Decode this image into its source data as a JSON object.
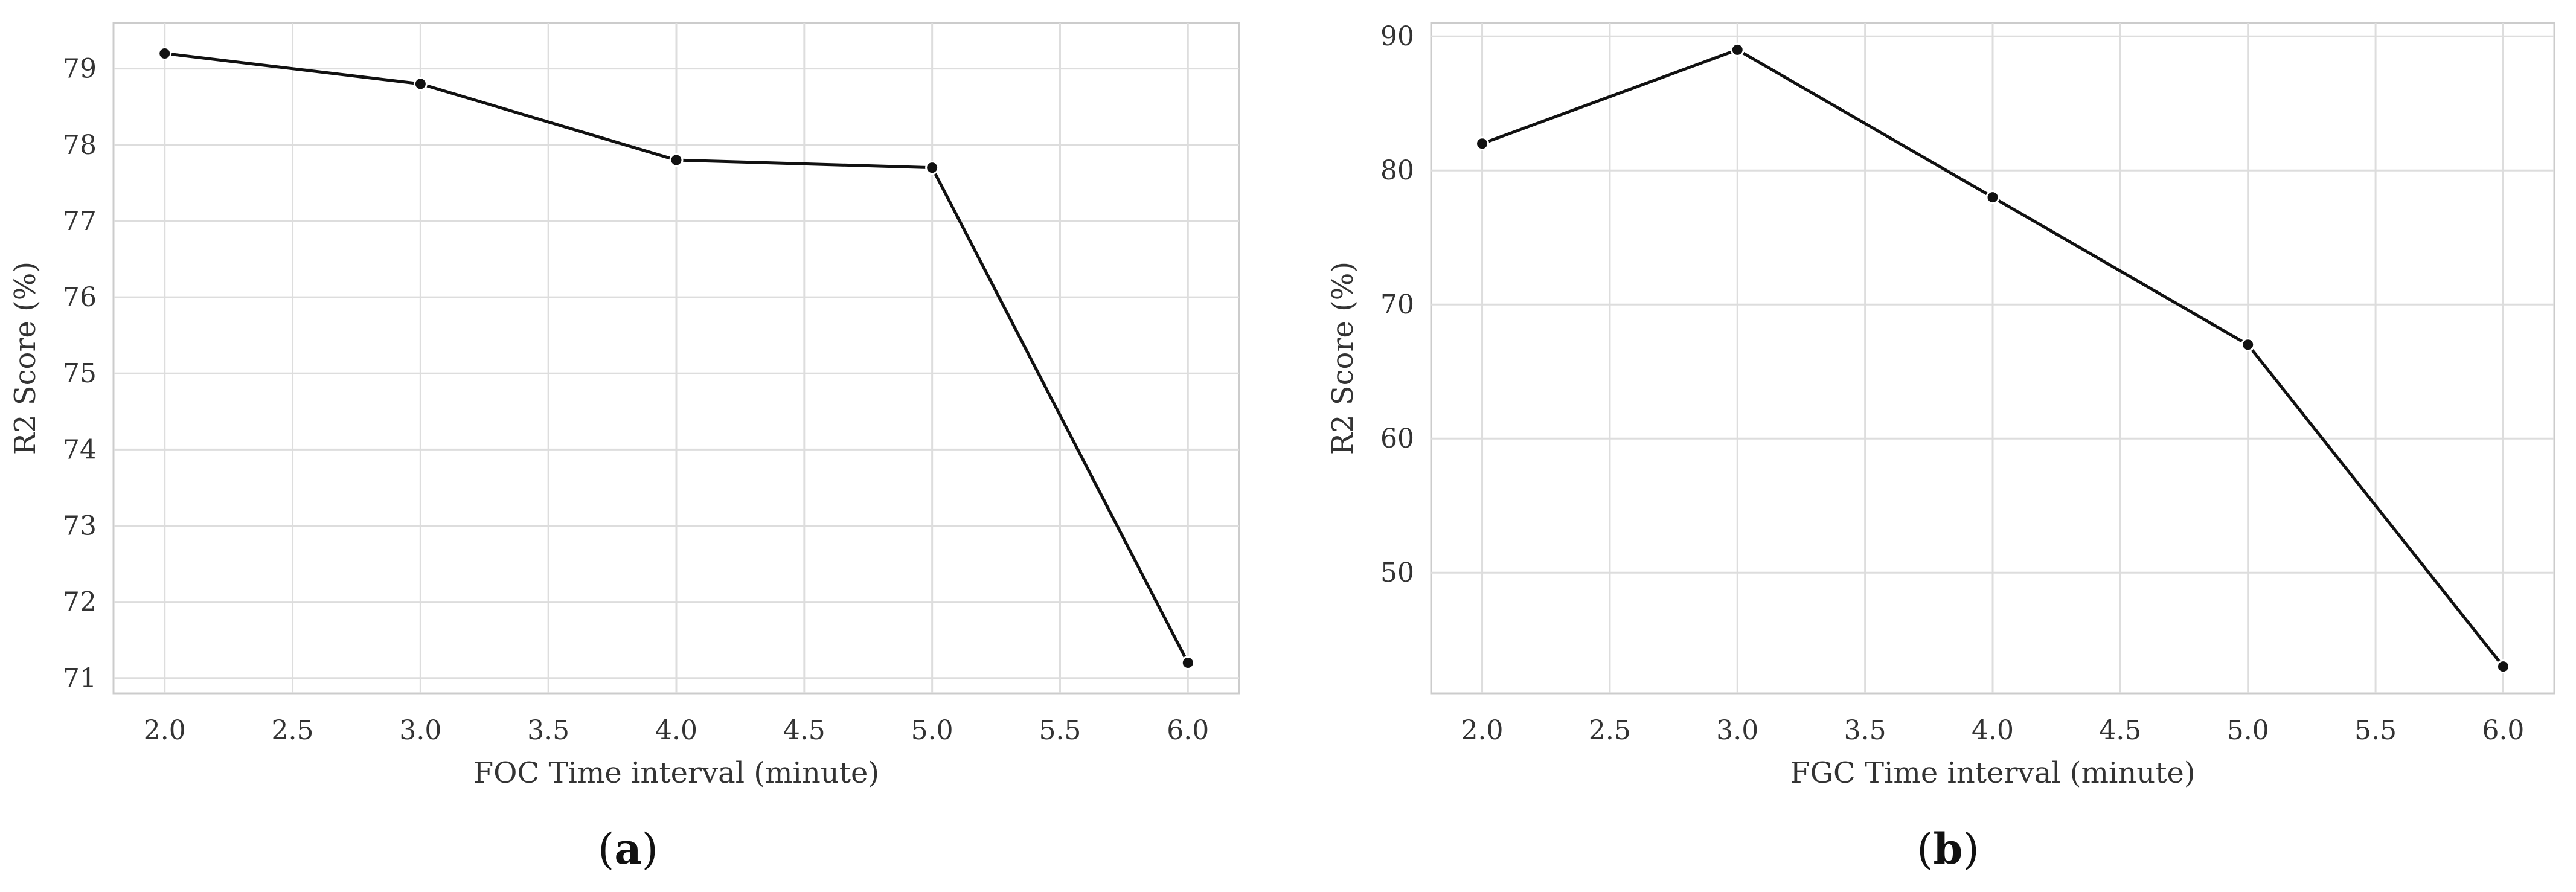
{
  "chart_data": [
    {
      "type": "line",
      "panel_label": "a",
      "xlabel": "FOC Time interval (minute)",
      "ylabel": "R2 Score (%)",
      "x": [
        2.0,
        3.0,
        4.0,
        5.0,
        6.0
      ],
      "series": [
        {
          "values": [
            79.2,
            78.8,
            77.8,
            77.7,
            71.2
          ]
        }
      ],
      "xlim": [
        1.8,
        6.2
      ],
      "ylim": [
        70.8,
        79.6
      ],
      "xticks": [
        "2.0",
        "2.5",
        "3.0",
        "3.5",
        "4.0",
        "4.5",
        "5.0",
        "5.5",
        "6.0"
      ],
      "yticks": [
        "71",
        "72",
        "73",
        "74",
        "75",
        "76",
        "77",
        "78",
        "79"
      ],
      "grid": true,
      "line_color": "#111111",
      "grid_color": "#dddddd"
    },
    {
      "type": "line",
      "panel_label": "b",
      "xlabel": "FGC Time interval (minute)",
      "ylabel": "R2 Score (%)",
      "x": [
        2.0,
        3.0,
        4.0,
        5.0,
        6.0
      ],
      "series": [
        {
          "values": [
            82,
            89,
            78,
            67,
            43
          ]
        }
      ],
      "xlim": [
        1.8,
        6.2
      ],
      "ylim": [
        41,
        91
      ],
      "xticks": [
        "2.0",
        "2.5",
        "3.0",
        "3.5",
        "4.0",
        "4.5",
        "5.0",
        "5.5",
        "6.0"
      ],
      "yticks": [
        "50",
        "60",
        "70",
        "80",
        "90"
      ],
      "grid": true,
      "line_color": "#111111",
      "grid_color": "#dddddd"
    }
  ]
}
